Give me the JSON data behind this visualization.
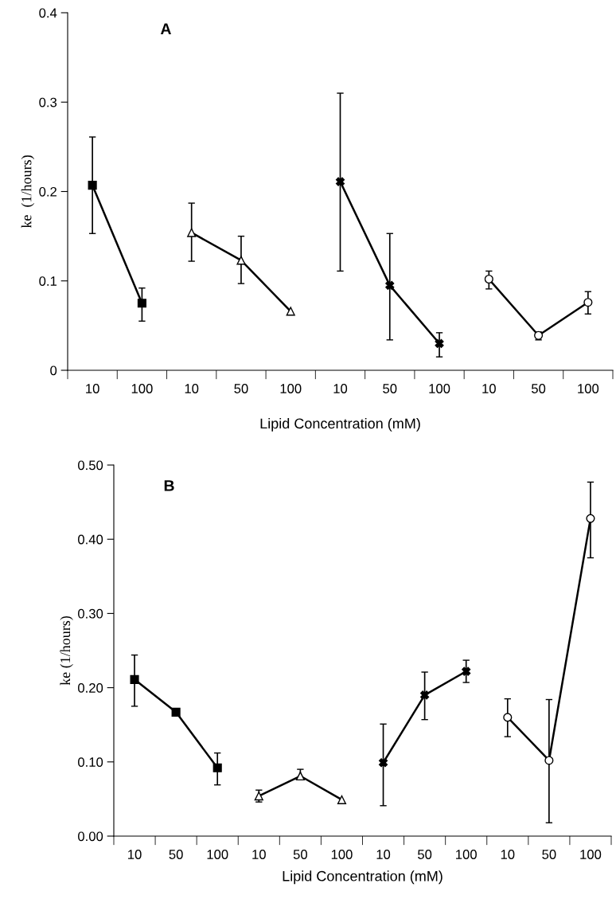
{
  "chart_data": [
    {
      "type": "line",
      "ylabel": "ke  (1/hours)",
      "xlabel": "Lipid Concentration (mM)",
      "annotations": [
        "A"
      ],
      "categories": [
        "10",
        "100",
        "10",
        "50",
        "100",
        "10",
        "50",
        "100",
        "10",
        "50",
        "100"
      ],
      "ylim": [
        0,
        0.4
      ],
      "yticks": [
        0,
        0.1,
        0.2,
        0.3,
        0.4
      ],
      "grid": false,
      "series": [
        {
          "color": "#000000",
          "marker": "square",
          "values": [
            0.207,
            0.075,
            null,
            null,
            null,
            null,
            null,
            null,
            null,
            null,
            null
          ],
          "errors": [
            [
              0.153,
              0.261
            ],
            [
              0.055,
              0.092
            ],
            null,
            null,
            null,
            null,
            null,
            null,
            null,
            null,
            null
          ]
        },
        {
          "color": "#000000",
          "marker": "triangle",
          "values": [
            null,
            null,
            0.154,
            0.123,
            0.066,
            null,
            null,
            null,
            null,
            null,
            null
          ],
          "errors": [
            null,
            null,
            [
              0.122,
              0.187
            ],
            [
              0.097,
              0.15
            ],
            null,
            null,
            null,
            null,
            null,
            null,
            null
          ]
        },
        {
          "color": "#000000",
          "marker": "cross",
          "values": [
            null,
            null,
            null,
            null,
            null,
            0.211,
            0.095,
            0.03,
            null,
            null,
            null
          ],
          "errors": [
            null,
            null,
            null,
            null,
            null,
            [
              0.111,
              0.31
            ],
            [
              0.034,
              0.153
            ],
            [
              0.015,
              0.042
            ],
            null,
            null,
            null
          ]
        },
        {
          "color": "#000000",
          "marker": "circle",
          "values": [
            null,
            null,
            null,
            null,
            null,
            null,
            null,
            null,
            0.102,
            0.039,
            0.076
          ],
          "errors": [
            null,
            null,
            null,
            null,
            null,
            null,
            null,
            null,
            [
              0.091,
              0.111
            ],
            [
              0.034,
              0.043
            ],
            [
              0.063,
              0.088
            ]
          ]
        }
      ]
    },
    {
      "type": "line",
      "ylabel": "ke (1/hours)",
      "xlabel": "Lipid Concentration (mM)",
      "annotations": [
        "B"
      ],
      "categories": [
        "10",
        "50",
        "100",
        "10",
        "50",
        "100",
        "10",
        "50",
        "100",
        "10",
        "50",
        "100"
      ],
      "ylim": [
        0,
        0.5
      ],
      "yticks": [
        {
          "value": 0,
          "label": "0.00"
        },
        {
          "value": 0.1,
          "label": "0.10"
        },
        {
          "value": 0.2,
          "label": "0.20"
        },
        {
          "value": 0.3,
          "label": "0.30"
        },
        {
          "value": 0.4,
          "label": "0.40"
        },
        {
          "value": 0.5,
          "label": "0.50"
        }
      ],
      "grid": false,
      "series": [
        {
          "color": "#000000",
          "marker": "square",
          "values": [
            0.211,
            0.167,
            0.092,
            null,
            null,
            null,
            null,
            null,
            null,
            null,
            null,
            null
          ],
          "errors": [
            [
              0.175,
              0.244
            ],
            null,
            [
              0.069,
              0.112
            ],
            null,
            null,
            null,
            null,
            null,
            null,
            null,
            null,
            null
          ]
        },
        {
          "color": "#000000",
          "marker": "triangle",
          "values": [
            null,
            null,
            null,
            0.054,
            0.081,
            0.049,
            null,
            null,
            null,
            null,
            null,
            null
          ],
          "errors": [
            null,
            null,
            null,
            [
              0.046,
              0.062
            ],
            [
              0.076,
              0.09
            ],
            null,
            null,
            null,
            null,
            null,
            null,
            null
          ]
        },
        {
          "color": "#000000",
          "marker": "cross",
          "values": [
            null,
            null,
            null,
            null,
            null,
            null,
            0.099,
            0.19,
            0.222,
            null,
            null,
            null
          ],
          "errors": [
            null,
            null,
            null,
            null,
            null,
            null,
            [
              0.041,
              0.151
            ],
            [
              0.157,
              0.221
            ],
            [
              0.207,
              0.237
            ],
            null,
            null,
            null
          ]
        },
        {
          "color": "#000000",
          "marker": "circle",
          "values": [
            null,
            null,
            null,
            null,
            null,
            null,
            null,
            null,
            null,
            0.16,
            0.102,
            0.428
          ],
          "errors": [
            null,
            null,
            null,
            null,
            null,
            null,
            null,
            null,
            null,
            [
              0.134,
              0.185
            ],
            [
              0.018,
              0.184
            ],
            [
              0.375,
              0.477
            ]
          ]
        }
      ]
    }
  ]
}
